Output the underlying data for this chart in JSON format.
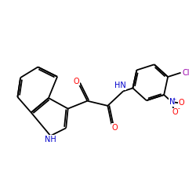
{
  "background_color": "#ffffff",
  "bond_color": "#000000",
  "atom_colors": {
    "O": "#ff0000",
    "N": "#0000cc",
    "Cl": "#9900aa",
    "C": "#000000",
    "H": "#000000"
  },
  "lw": 1.3,
  "fs": 7.0
}
